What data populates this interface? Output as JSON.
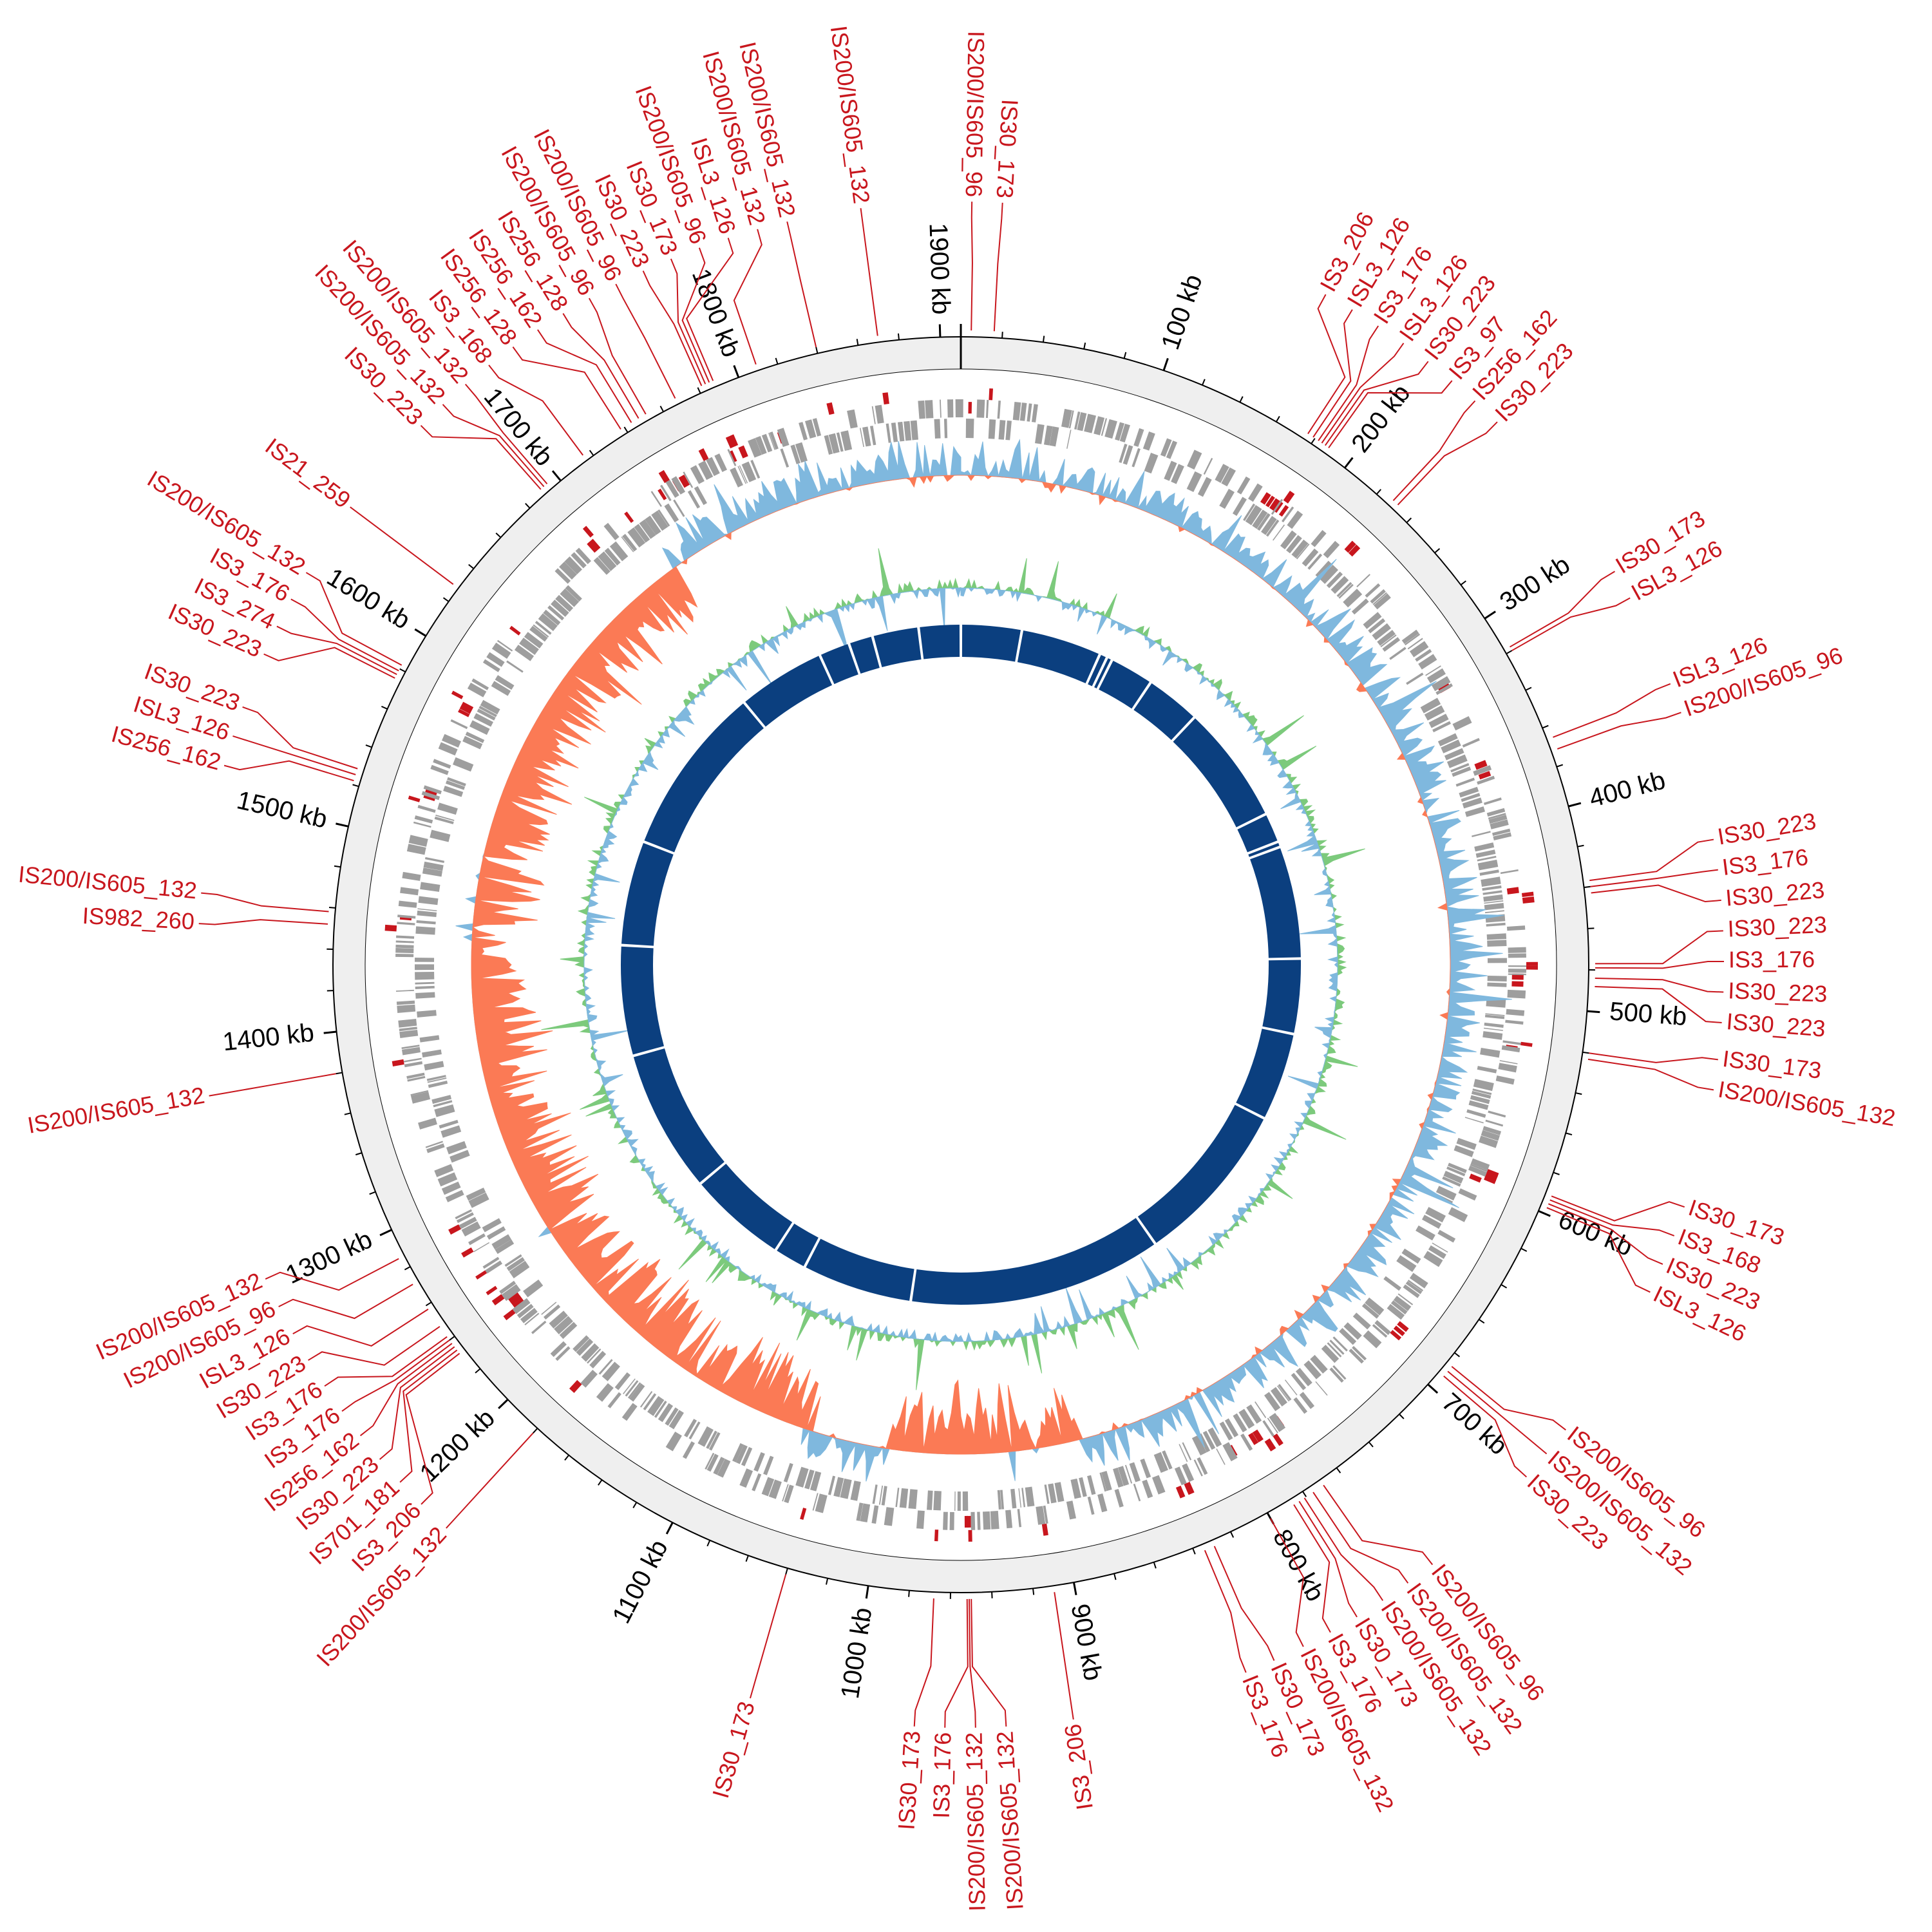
{
  "genome_map": {
    "genome_length_kb": 1910,
    "tick_labels": [
      {
        "kb": 100,
        "label": "100 kb"
      },
      {
        "kb": 200,
        "label": "200 kb"
      },
      {
        "kb": 300,
        "label": "300 kb"
      },
      {
        "kb": 400,
        "label": "400 kb"
      },
      {
        "kb": 500,
        "label": "500 kb"
      },
      {
        "kb": 600,
        "label": "600 kb"
      },
      {
        "kb": 700,
        "label": "700 kb"
      },
      {
        "kb": 800,
        "label": "800 kb"
      },
      {
        "kb": 900,
        "label": "900 kb"
      },
      {
        "kb": 1000,
        "label": "1000 kb"
      },
      {
        "kb": 1100,
        "label": "1100 kb"
      },
      {
        "kb": 1200,
        "label": "1200 kb"
      },
      {
        "kb": 1300,
        "label": "1300 kb"
      },
      {
        "kb": 1400,
        "label": "1400 kb"
      },
      {
        "kb": 1500,
        "label": "1500 kb"
      },
      {
        "kb": 1600,
        "label": "1600 kb"
      },
      {
        "kb": 1700,
        "label": "1700 kb"
      },
      {
        "kb": 1800,
        "label": "1800 kb"
      },
      {
        "kb": 1900,
        "label": "1900 kb"
      }
    ],
    "insertion_sequences": [
      {
        "kb": 5,
        "label": "IS200/IS605_96"
      },
      {
        "kb": 16,
        "label": "IS30_173"
      },
      {
        "kb": 176,
        "label": "IS3_206"
      },
      {
        "kb": 179,
        "label": "ISL3_126"
      },
      {
        "kb": 182,
        "label": "IS3_176"
      },
      {
        "kb": 184,
        "label": "ISL3_126"
      },
      {
        "kb": 186,
        "label": "IS30_223"
      },
      {
        "kb": 188,
        "label": "IS3_97"
      },
      {
        "kb": 228,
        "label": "IS256_162"
      },
      {
        "kb": 231,
        "label": "IS30_223"
      },
      {
        "kb": 318,
        "label": "IS30_173"
      },
      {
        "kb": 320,
        "label": "ISL3_126"
      },
      {
        "kb": 366,
        "label": "ISL3_126"
      },
      {
        "kb": 372,
        "label": "IS200/IS605_96"
      },
      {
        "kb": 437,
        "label": "IS30_223"
      },
      {
        "kb": 440,
        "label": "IS3_176"
      },
      {
        "kb": 443,
        "label": "IS30_223"
      },
      {
        "kb": 477,
        "label": "IS30_223"
      },
      {
        "kb": 479,
        "label": "IS3_176"
      },
      {
        "kb": 484,
        "label": "IS30_223"
      },
      {
        "kb": 488,
        "label": "IS30_223"
      },
      {
        "kb": 520,
        "label": "IS30_173"
      },
      {
        "kb": 523,
        "label": "IS200/IS605_132"
      },
      {
        "kb": 591,
        "label": "IS30_173"
      },
      {
        "kb": 593,
        "label": "IS3_168"
      },
      {
        "kb": 595,
        "label": "IS30_223"
      },
      {
        "kb": 597,
        "label": "ISL3_126"
      },
      {
        "kb": 686,
        "label": "IS200/IS605_96"
      },
      {
        "kb": 689,
        "label": "IS200/IS605_132"
      },
      {
        "kb": 692,
        "label": "IS30_223"
      },
      {
        "kb": 770,
        "label": "IS200/IS605_96"
      },
      {
        "kb": 776,
        "label": "IS200/IS605_132"
      },
      {
        "kb": 781,
        "label": "IS200/IS605_132"
      },
      {
        "kb": 784,
        "label": "IS30_173"
      },
      {
        "kb": 787,
        "label": "IS3_176"
      },
      {
        "kb": 800,
        "label": "IS200/IS605_132"
      },
      {
        "kb": 830,
        "label": "IS30_173"
      },
      {
        "kb": 835,
        "label": "IS3_176"
      },
      {
        "kb": 910,
        "label": "IS3_206"
      },
      {
        "kb": 950,
        "label": "IS200/IS605_132"
      },
      {
        "kb": 951,
        "label": "IS200/IS605_132"
      },
      {
        "kb": 952,
        "label": "IS3_176"
      },
      {
        "kb": 968,
        "label": "IS30_173"
      },
      {
        "kb": 1040,
        "label": "IS30_173"
      },
      {
        "kb": 1180,
        "label": "IS200/IS605_132"
      },
      {
        "kb": 1232,
        "label": "IS3_206"
      },
      {
        "kb": 1234,
        "label": "IS701_181"
      },
      {
        "kb": 1236,
        "label": "IS30_223"
      },
      {
        "kb": 1238,
        "label": "IS256_162"
      },
      {
        "kb": 1240,
        "label": "IS3_176"
      },
      {
        "kb": 1242,
        "label": "IS3_176"
      },
      {
        "kb": 1248,
        "label": "IS30_223"
      },
      {
        "kb": 1258,
        "label": "ISL3_126"
      },
      {
        "kb": 1272,
        "label": "IS200/IS605_96"
      },
      {
        "kb": 1286,
        "label": "IS200/IS605_132"
      },
      {
        "kb": 1380,
        "label": "IS200/IS605_132"
      },
      {
        "kb": 1452,
        "label": "IS982_260"
      },
      {
        "kb": 1458,
        "label": "IS200/IS605_132"
      },
      {
        "kb": 1522,
        "label": "IS256_162"
      },
      {
        "kb": 1525,
        "label": "ISL3_126"
      },
      {
        "kb": 1528,
        "label": "IS30_223"
      },
      {
        "kb": 1575,
        "label": "IS30_223"
      },
      {
        "kb": 1577,
        "label": "IS3_274"
      },
      {
        "kb": 1579,
        "label": "IS3_176"
      },
      {
        "kb": 1582,
        "label": "IS200/IS605_132"
      },
      {
        "kb": 1628,
        "label": "IS21_259"
      },
      {
        "kb": 1690,
        "label": "IS30_223"
      },
      {
        "kb": 1692,
        "label": "IS200/IS605_132"
      },
      {
        "kb": 1694,
        "label": "IS200/IS605_132"
      },
      {
        "kb": 1716,
        "label": "IS3_168"
      },
      {
        "kb": 1738,
        "label": "IS256_128"
      },
      {
        "kb": 1744,
        "label": "IS256_162"
      },
      {
        "kb": 1748,
        "label": "IS256_128"
      },
      {
        "kb": 1752,
        "label": "IS200/IS605_96"
      },
      {
        "kb": 1768,
        "label": "IS200/IS605_96"
      },
      {
        "kb": 1782,
        "label": "IS30_223"
      },
      {
        "kb": 1784,
        "label": "IS30_173"
      },
      {
        "kb": 1786,
        "label": "IS200/IS605_96"
      },
      {
        "kb": 1788,
        "label": "ISL3_126"
      },
      {
        "kb": 1810,
        "label": "IS200/IS605_132"
      },
      {
        "kb": 1840,
        "label": "IS200/IS605_132"
      },
      {
        "kb": 1870,
        "label": "IS200/IS605_132"
      }
    ]
  },
  "colors": {
    "is_red": "#c8161d",
    "gene_gray": "#9e9e9e",
    "band_gray": "#efefef",
    "plot_blue": "#7fb8de",
    "plot_orange": "#fb7a55",
    "plot_green": "#7cca7c",
    "ring_blue": "#0b3f7f"
  }
}
